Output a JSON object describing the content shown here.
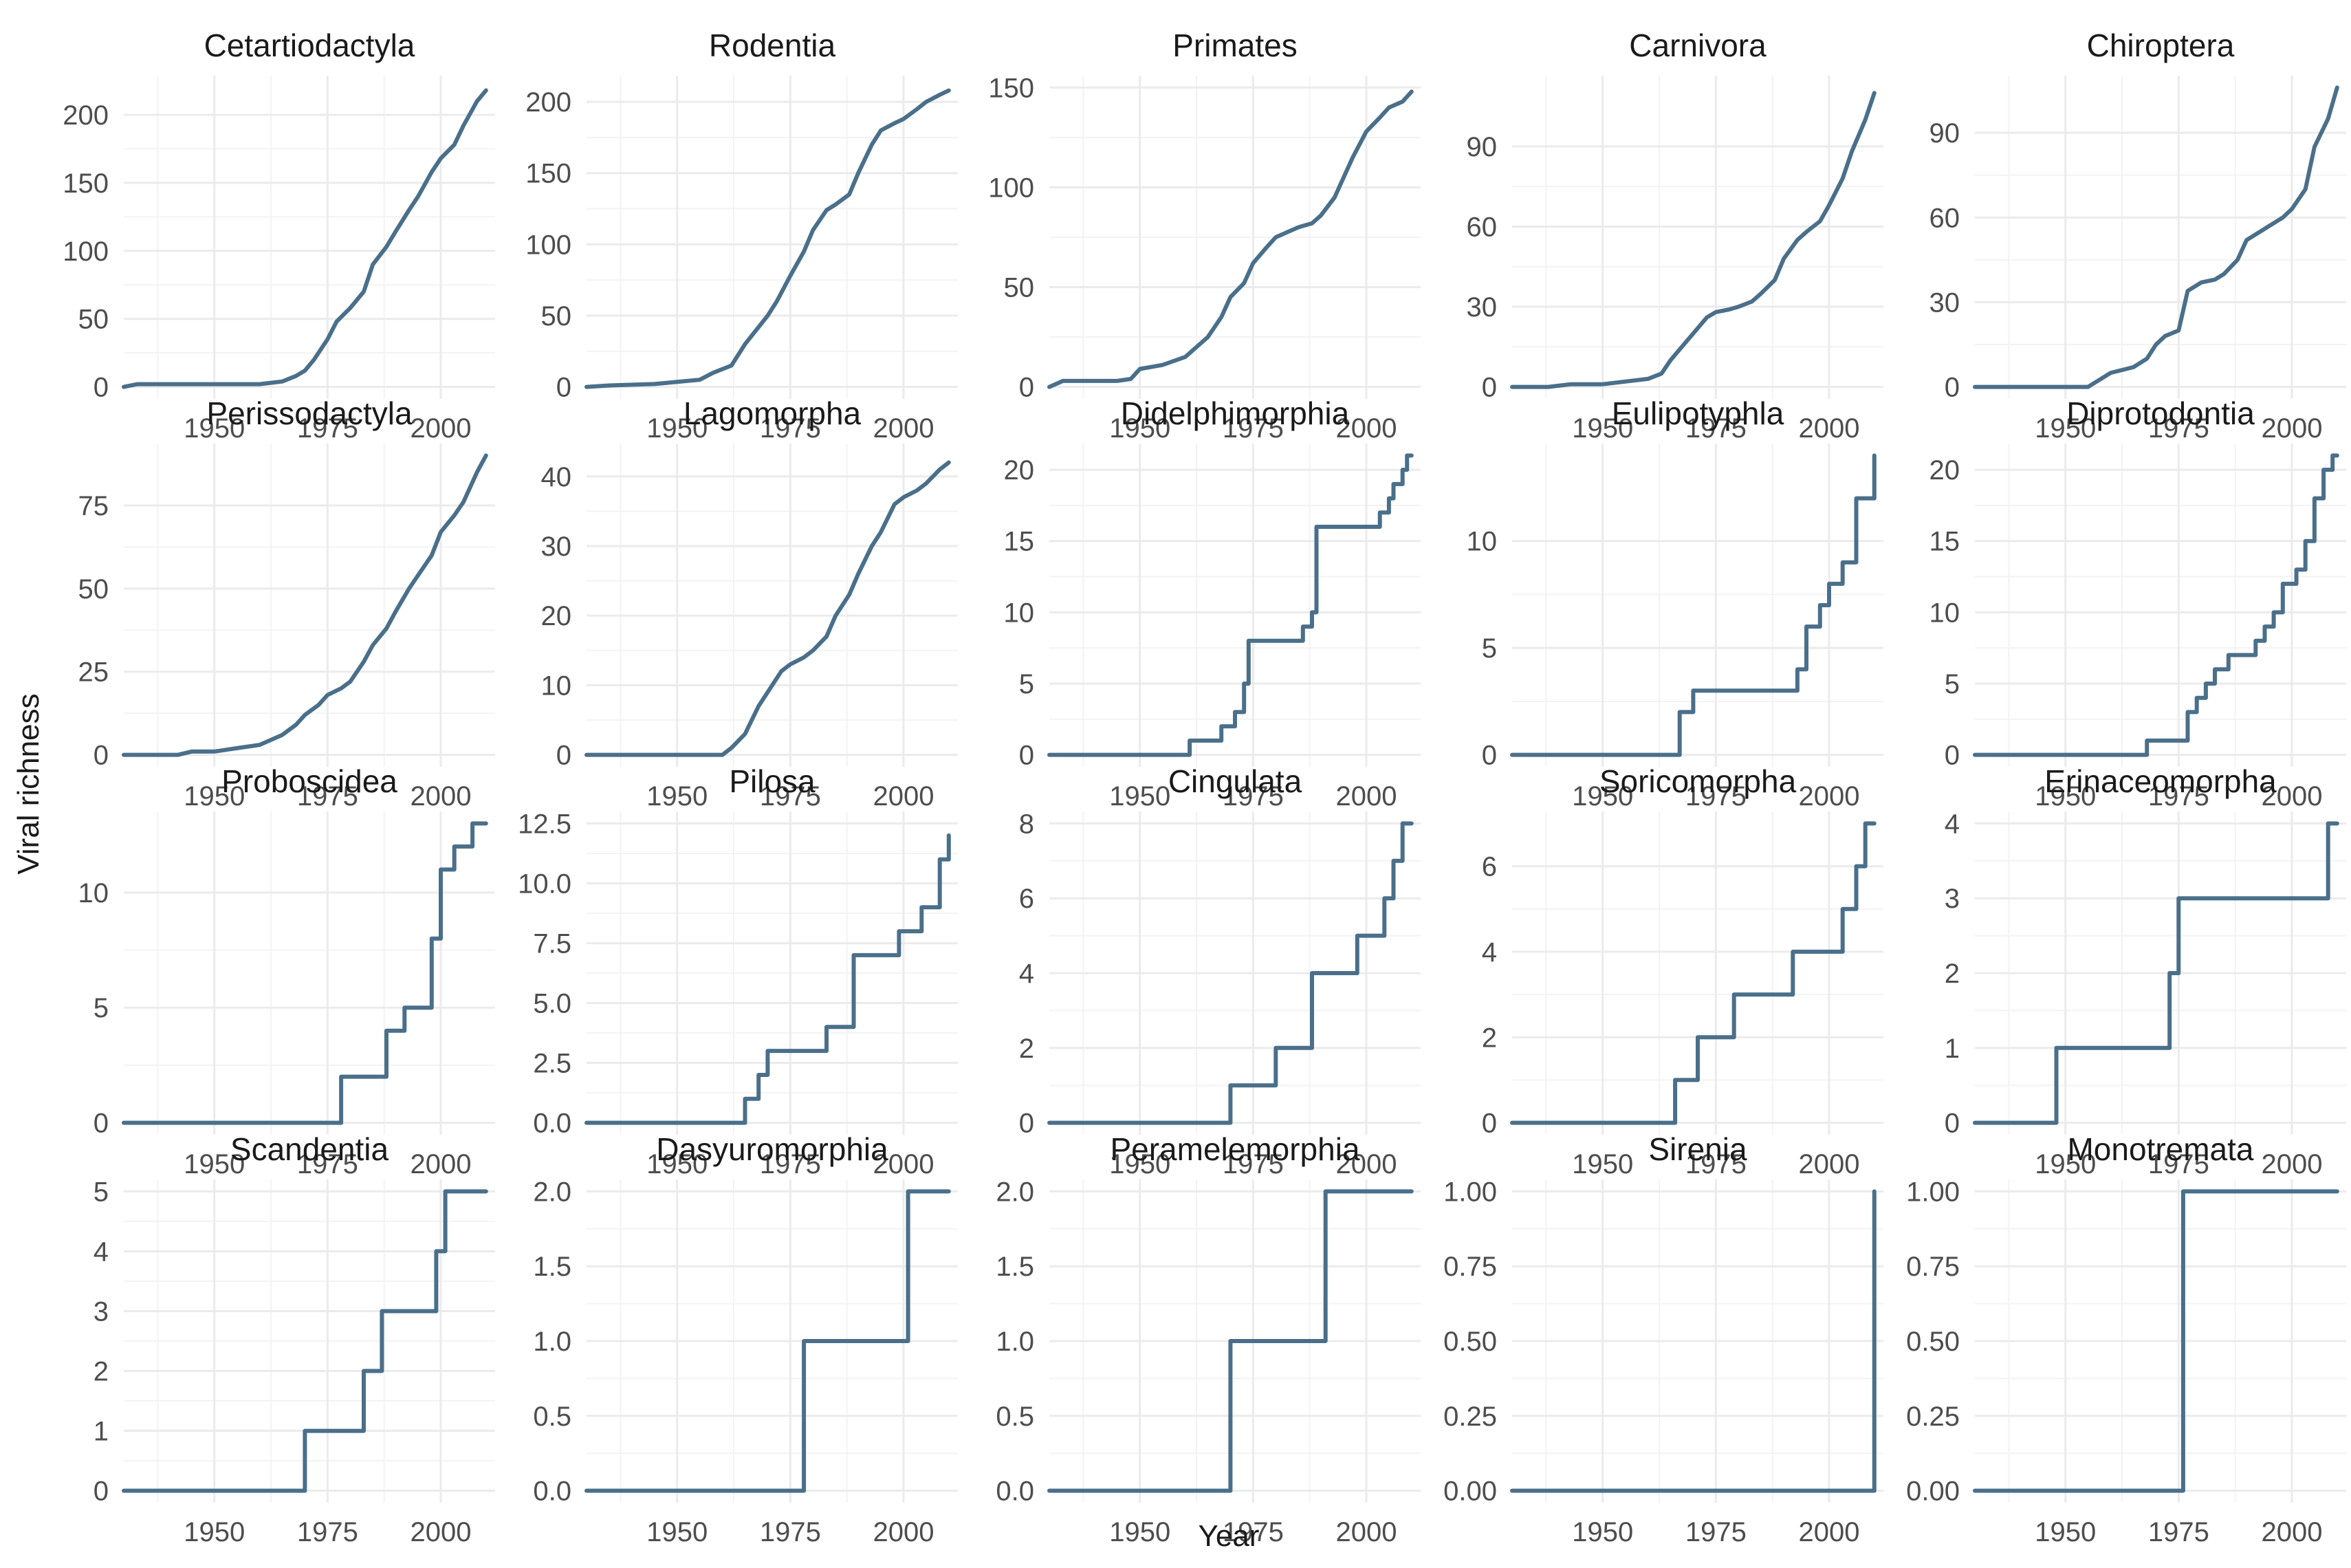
{
  "figure": {
    "xlabel": "Year",
    "ylabel": "Viral richness",
    "colors": {
      "line": "#4a6f8a",
      "grid_major": "#ebebeb",
      "grid_minor": "#f3f3f3",
      "background": "#ffffff"
    }
  },
  "chart_data": [
    {
      "type": "line",
      "title": "Cetartiodactyla",
      "xlim": [
        1930,
        2012
      ],
      "xticks": [
        1950,
        1975,
        2000
      ],
      "xtick_labels": [
        "1950",
        "1975",
        "2000"
      ],
      "ylim": [
        0,
        220
      ],
      "yticks": [
        0,
        50,
        100,
        150,
        200
      ],
      "ytick_labels": [
        "0",
        "50",
        "100",
        "150",
        "200"
      ],
      "x": [
        1930,
        1933,
        1945,
        1960,
        1965,
        1968,
        1970,
        1972,
        1975,
        1977,
        1980,
        1983,
        1985,
        1988,
        1990,
        1993,
        1995,
        1998,
        2000,
        2003,
        2005,
        2008,
        2010
      ],
      "y": [
        0,
        2,
        2,
        2,
        4,
        8,
        12,
        20,
        35,
        48,
        58,
        70,
        90,
        103,
        114,
        130,
        140,
        158,
        168,
        178,
        192,
        210,
        218
      ]
    },
    {
      "type": "line",
      "title": "Rodentia",
      "xlim": [
        1930,
        2012
      ],
      "xticks": [
        1950,
        1975,
        2000
      ],
      "xtick_labels": [
        "1950",
        "1975",
        "2000"
      ],
      "ylim": [
        0,
        210
      ],
      "yticks": [
        0,
        50,
        100,
        150,
        200
      ],
      "ytick_labels": [
        "0",
        "50",
        "100",
        "150",
        "200"
      ],
      "x": [
        1930,
        1935,
        1945,
        1955,
        1958,
        1962,
        1965,
        1970,
        1972,
        1975,
        1978,
        1980,
        1983,
        1985,
        1988,
        1990,
        1993,
        1995,
        1998,
        2000,
        2003,
        2005,
        2008,
        2010
      ],
      "y": [
        0,
        1,
        2,
        5,
        10,
        15,
        30,
        50,
        60,
        78,
        95,
        110,
        124,
        128,
        135,
        150,
        170,
        180,
        185,
        188,
        195,
        200,
        205,
        208
      ]
    },
    {
      "type": "line",
      "title": "Primates",
      "xlim": [
        1930,
        2012
      ],
      "xticks": [
        1950,
        1975,
        2000
      ],
      "xtick_labels": [
        "1950",
        "1975",
        "2000"
      ],
      "ylim": [
        0,
        150
      ],
      "yticks": [
        0,
        50,
        100,
        150
      ],
      "ytick_labels": [
        "0",
        "50",
        "100",
        "150"
      ],
      "x": [
        1930,
        1933,
        1940,
        1945,
        1948,
        1950,
        1955,
        1960,
        1965,
        1968,
        1970,
        1973,
        1975,
        1978,
        1980,
        1983,
        1985,
        1988,
        1990,
        1993,
        1995,
        1997,
        2000,
        2003,
        2005,
        2008,
        2010
      ],
      "y": [
        0,
        3,
        3,
        3,
        4,
        9,
        11,
        15,
        25,
        35,
        45,
        52,
        62,
        70,
        75,
        78,
        80,
        82,
        86,
        95,
        105,
        115,
        128,
        135,
        140,
        143,
        148
      ]
    },
    {
      "type": "line",
      "title": "Carnivora",
      "xlim": [
        1930,
        2012
      ],
      "xticks": [
        1950,
        1975,
        2000
      ],
      "xtick_labels": [
        "1950",
        "1975",
        "2000"
      ],
      "ylim": [
        0,
        112
      ],
      "yticks": [
        0,
        30,
        60,
        90
      ],
      "ytick_labels": [
        "0",
        "30",
        "60",
        "90"
      ],
      "x": [
        1930,
        1938,
        1943,
        1950,
        1955,
        1960,
        1963,
        1965,
        1968,
        1970,
        1973,
        1975,
        1978,
        1980,
        1983,
        1985,
        1988,
        1990,
        1993,
        1995,
        1998,
        2000,
        2003,
        2005,
        2008,
        2010
      ],
      "y": [
        0,
        0,
        1,
        1,
        2,
        3,
        5,
        10,
        16,
        20,
        26,
        28,
        29,
        30,
        32,
        35,
        40,
        48,
        55,
        58,
        62,
        68,
        78,
        88,
        100,
        110
      ]
    },
    {
      "type": "line",
      "title": "Chiroptera",
      "xlim": [
        1930,
        2012
      ],
      "xticks": [
        1950,
        1975,
        2000
      ],
      "xtick_labels": [
        "1950",
        "1975",
        "2000"
      ],
      "ylim": [
        0,
        106
      ],
      "yticks": [
        0,
        30,
        60,
        90
      ],
      "ytick_labels": [
        "0",
        "30",
        "60",
        "90"
      ],
      "x": [
        1930,
        1945,
        1955,
        1958,
        1960,
        1965,
        1968,
        1970,
        1972,
        1975,
        1977,
        1980,
        1983,
        1985,
        1988,
        1990,
        1993,
        1995,
        1998,
        2000,
        2003,
        2005,
        2008,
        2010
      ],
      "y": [
        0,
        0,
        0,
        3,
        5,
        7,
        10,
        15,
        18,
        20,
        34,
        37,
        38,
        40,
        45,
        52,
        55,
        57,
        60,
        63,
        70,
        85,
        95,
        106
      ]
    },
    {
      "type": "line",
      "title": "Perissodactyla",
      "xlim": [
        1930,
        2012
      ],
      "xticks": [
        1950,
        1975,
        2000
      ],
      "xtick_labels": [
        "1950",
        "1975",
        "2000"
      ],
      "ylim": [
        0,
        90
      ],
      "yticks": [
        0,
        25,
        50,
        75
      ],
      "ytick_labels": [
        "0",
        "25",
        "50",
        "75"
      ],
      "x": [
        1930,
        1942,
        1945,
        1950,
        1955,
        1960,
        1965,
        1968,
        1970,
        1973,
        1975,
        1978,
        1980,
        1983,
        1985,
        1988,
        1990,
        1993,
        1995,
        1998,
        2000,
        2003,
        2005,
        2008,
        2010
      ],
      "y": [
        0,
        0,
        1,
        1,
        2,
        3,
        6,
        9,
        12,
        15,
        18,
        20,
        22,
        28,
        33,
        38,
        43,
        50,
        54,
        60,
        67,
        72,
        76,
        85,
        90
      ]
    },
    {
      "type": "line",
      "title": "Lagomorpha",
      "xlim": [
        1930,
        2012
      ],
      "xticks": [
        1950,
        1975,
        2000
      ],
      "xtick_labels": [
        "1950",
        "1975",
        "2000"
      ],
      "ylim": [
        0,
        43
      ],
      "yticks": [
        0,
        10,
        20,
        30,
        40
      ],
      "ytick_labels": [
        "0",
        "10",
        "20",
        "30",
        "40"
      ],
      "x": [
        1930,
        1960,
        1962,
        1965,
        1968,
        1970,
        1973,
        1975,
        1978,
        1980,
        1983,
        1985,
        1988,
        1990,
        1993,
        1995,
        1998,
        2000,
        2003,
        2005,
        2008,
        2010
      ],
      "y": [
        0,
        0,
        1,
        3,
        7,
        9,
        12,
        13,
        14,
        15,
        17,
        20,
        23,
        26,
        30,
        32,
        36,
        37,
        38,
        39,
        41,
        42
      ]
    },
    {
      "type": "line",
      "title": "Didelphimorphia",
      "xlim": [
        1930,
        2012
      ],
      "xticks": [
        1950,
        1975,
        2000
      ],
      "xtick_labels": [
        "1950",
        "1975",
        "2000"
      ],
      "ylim": [
        0,
        21
      ],
      "yticks": [
        0,
        5,
        10,
        15,
        20
      ],
      "ytick_labels": [
        "0",
        "5",
        "10",
        "15",
        "20"
      ],
      "x": [
        1930,
        1960,
        1961,
        1967,
        1968,
        1970,
        1971,
        1973,
        1974,
        1977,
        1986,
        1988,
        1989,
        2002,
        2003,
        2005,
        2006,
        2008,
        2009,
        2010
      ],
      "y": [
        0,
        0,
        1,
        1,
        2,
        2,
        3,
        5,
        8,
        8,
        9,
        10,
        16,
        16,
        17,
        18,
        19,
        20,
        21,
        21
      ],
      "step": "post"
    },
    {
      "type": "line",
      "title": "Eulipotyphla",
      "xlim": [
        1930,
        2012
      ],
      "xticks": [
        1950,
        1975,
        2000
      ],
      "xtick_labels": [
        "1950",
        "1975",
        "2000"
      ],
      "ylim": [
        0,
        14
      ],
      "yticks": [
        0,
        5,
        10
      ],
      "ytick_labels": [
        "0",
        "5",
        "10"
      ],
      "x": [
        1930,
        1965,
        1967,
        1970,
        1990,
        1993,
        1995,
        1998,
        2000,
        2003,
        2006,
        2010
      ],
      "y": [
        0,
        0,
        2,
        3,
        3,
        4,
        6,
        7,
        8,
        9,
        12,
        14
      ],
      "step": "post"
    },
    {
      "type": "line",
      "title": "Diprotodontia",
      "xlim": [
        1930,
        2012
      ],
      "xticks": [
        1950,
        1975,
        2000
      ],
      "xtick_labels": [
        "1950",
        "1975",
        "2000"
      ],
      "ylim": [
        0,
        21
      ],
      "yticks": [
        0,
        5,
        10,
        15,
        20
      ],
      "ytick_labels": [
        "0",
        "5",
        "10",
        "15",
        "20"
      ],
      "x": [
        1930,
        1967,
        1968,
        1975,
        1977,
        1979,
        1981,
        1983,
        1986,
        1988,
        1992,
        1994,
        1996,
        1998,
        2001,
        2003,
        2005,
        2007,
        2009,
        2010
      ],
      "y": [
        0,
        0,
        1,
        1,
        3,
        4,
        5,
        6,
        7,
        7,
        8,
        9,
        10,
        12,
        13,
        15,
        18,
        20,
        21,
        21
      ],
      "step": "post"
    },
    {
      "type": "line",
      "title": "Proboscidea",
      "xlim": [
        1930,
        2012
      ],
      "xticks": [
        1950,
        1975,
        2000
      ],
      "xtick_labels": [
        "1950",
        "1975",
        "2000"
      ],
      "ylim": [
        0,
        13
      ],
      "yticks": [
        0,
        5,
        10
      ],
      "ytick_labels": [
        "0",
        "5",
        "10"
      ],
      "x": [
        1930,
        1976,
        1978,
        1985,
        1988,
        1992,
        1996,
        1998,
        2000,
        2003,
        2007,
        2010
      ],
      "y": [
        0,
        0,
        2,
        2,
        4,
        5,
        5,
        8,
        11,
        12,
        13,
        13
      ],
      "step": "post"
    },
    {
      "type": "line",
      "title": "Pilosa",
      "xlim": [
        1930,
        2012
      ],
      "xticks": [
        1950,
        1975,
        2000
      ],
      "xtick_labels": [
        "1950",
        "1975",
        "2000"
      ],
      "ylim": [
        0,
        12.5
      ],
      "yticks": [
        0,
        2.5,
        5,
        7.5,
        10,
        12.5
      ],
      "ytick_labels": [
        "0.0",
        "2.5",
        "5.0",
        "7.5",
        "10.0",
        "12.5"
      ],
      "x": [
        1930,
        1961,
        1965,
        1968,
        1970,
        1976,
        1983,
        1989,
        1994,
        1999,
        2004,
        2008,
        2010
      ],
      "y": [
        0,
        0,
        1,
        2,
        3,
        3,
        4,
        7,
        7,
        8,
        9,
        11,
        12
      ],
      "step": "post"
    },
    {
      "type": "line",
      "title": "Cingulata",
      "xlim": [
        1930,
        2012
      ],
      "xticks": [
        1950,
        1975,
        2000
      ],
      "xtick_labels": [
        "1950",
        "1975",
        "2000"
      ],
      "ylim": [
        0,
        8
      ],
      "yticks": [
        0,
        2,
        4,
        6,
        8
      ],
      "ytick_labels": [
        "0",
        "2",
        "4",
        "6",
        "8"
      ],
      "x": [
        1930,
        1968,
        1970,
        1974,
        1980,
        1983,
        1988,
        1993,
        1998,
        2001,
        2004,
        2006,
        2008,
        2010
      ],
      "y": [
        0,
        0,
        1,
        1,
        2,
        2,
        4,
        4,
        5,
        5,
        6,
        7,
        8,
        8
      ],
      "step": "post"
    },
    {
      "type": "line",
      "title": "Soricomorpha",
      "xlim": [
        1930,
        2012
      ],
      "xticks": [
        1950,
        1975,
        2000
      ],
      "xtick_labels": [
        "1950",
        "1975",
        "2000"
      ],
      "ylim": [
        0,
        7
      ],
      "yticks": [
        0,
        2,
        4,
        6
      ],
      "ytick_labels": [
        "0",
        "2",
        "4",
        "6"
      ],
      "x": [
        1930,
        1964,
        1966,
        1971,
        1974,
        1979,
        1988,
        1992,
        2000,
        2003,
        2006,
        2008,
        2010
      ],
      "y": [
        0,
        0,
        1,
        2,
        2,
        3,
        3,
        4,
        4,
        5,
        6,
        7,
        7
      ],
      "step": "post"
    },
    {
      "type": "line",
      "title": "Erinaceomorpha",
      "xlim": [
        1930,
        2012
      ],
      "xticks": [
        1950,
        1975,
        2000
      ],
      "xtick_labels": [
        "1950",
        "1975",
        "2000"
      ],
      "ylim": [
        0,
        4
      ],
      "yticks": [
        0,
        1,
        2,
        3,
        4
      ],
      "ytick_labels": [
        "0",
        "1",
        "2",
        "3",
        "4"
      ],
      "x": [
        1930,
        1947,
        1948,
        1972,
        1973,
        1975,
        2007,
        2008,
        2010
      ],
      "y": [
        0,
        0,
        1,
        1,
        2,
        3,
        3,
        4,
        4
      ],
      "step": "post"
    },
    {
      "type": "line",
      "title": "Scandentia",
      "xlim": [
        1930,
        2012
      ],
      "xticks": [
        1950,
        1975,
        2000
      ],
      "xtick_labels": [
        "1950",
        "1975",
        "2000"
      ],
      "ylim": [
        0,
        5
      ],
      "yticks": [
        0,
        1,
        2,
        3,
        4,
        5
      ],
      "ytick_labels": [
        "0",
        "1",
        "2",
        "3",
        "4",
        "5"
      ],
      "x": [
        1930,
        1969,
        1970,
        1980,
        1983,
        1987,
        1998,
        1999,
        2001,
        2010
      ],
      "y": [
        0,
        0,
        1,
        1,
        2,
        3,
        3,
        4,
        5,
        5
      ],
      "step": "post"
    },
    {
      "type": "line",
      "title": "Dasyuromorphia",
      "xlim": [
        1930,
        2012
      ],
      "xticks": [
        1950,
        1975,
        2000
      ],
      "xtick_labels": [
        "1950",
        "1975",
        "2000"
      ],
      "ylim": [
        0,
        2
      ],
      "yticks": [
        0,
        0.5,
        1,
        1.5,
        2
      ],
      "ytick_labels": [
        "0.0",
        "0.5",
        "1.0",
        "1.5",
        "2.0"
      ],
      "x": [
        1930,
        1977,
        1978,
        2000,
        2001,
        2010
      ],
      "y": [
        0,
        0,
        1,
        1,
        2,
        2
      ],
      "step": "post"
    },
    {
      "type": "line",
      "title": "Peramelemorphia",
      "xlim": [
        1930,
        2012
      ],
      "xticks": [
        1950,
        1975,
        2000
      ],
      "xtick_labels": [
        "1950",
        "1975",
        "2000"
      ],
      "ylim": [
        0,
        2
      ],
      "yticks": [
        0,
        0.5,
        1,
        1.5,
        2
      ],
      "ytick_labels": [
        "0.0",
        "0.5",
        "1.0",
        "1.5",
        "2.0"
      ],
      "x": [
        1930,
        1968,
        1970,
        1990,
        1991,
        2010
      ],
      "y": [
        0,
        0,
        1,
        1,
        2,
        2
      ],
      "step": "post"
    },
    {
      "type": "line",
      "title": "Sirenia",
      "xlim": [
        1930,
        2012
      ],
      "xticks": [
        1950,
        1975,
        2000
      ],
      "xtick_labels": [
        "1950",
        "1975",
        "2000"
      ],
      "ylim": [
        0,
        1
      ],
      "yticks": [
        0,
        0.25,
        0.5,
        0.75,
        1
      ],
      "ytick_labels": [
        "0.00",
        "0.25",
        "0.50",
        "0.75",
        "1.00"
      ],
      "x": [
        1930,
        2009,
        2010
      ],
      "y": [
        0,
        0,
        1
      ],
      "step": "post"
    },
    {
      "type": "line",
      "title": "Monotremata",
      "xlim": [
        1930,
        2012
      ],
      "xticks": [
        1950,
        1975,
        2000
      ],
      "xtick_labels": [
        "1950",
        "1975",
        "2000"
      ],
      "ylim": [
        0,
        1
      ],
      "yticks": [
        0,
        0.25,
        0.5,
        0.75,
        1
      ],
      "ytick_labels": [
        "0.00",
        "0.25",
        "0.50",
        "0.75",
        "1.00"
      ],
      "x": [
        1930,
        1975,
        1976,
        2010
      ],
      "y": [
        0,
        0,
        1,
        1
      ],
      "step": "post"
    }
  ]
}
